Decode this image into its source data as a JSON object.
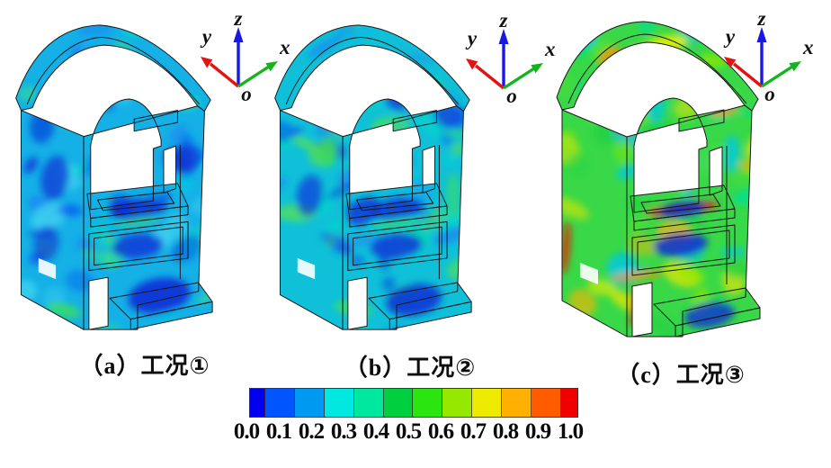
{
  "figure": {
    "background": "#ffffff",
    "subfigures": [
      {
        "id": "a",
        "caption": "（a）工况①",
        "base_color": "#14b0e6",
        "palette": [
          "#0a46f0",
          "#0a2ad8",
          "#1e78f5",
          "#00c8e0",
          "#00e0c0",
          "#35e08c",
          "#10a0f0",
          "#45d8f0"
        ]
      },
      {
        "id": "b",
        "caption": "（b）工况②",
        "base_color": "#0fc0d8",
        "palette": [
          "#0a46f0",
          "#0a2ad8",
          "#1e82f5",
          "#00d8c8",
          "#00e0a0",
          "#30dc6a",
          "#55e055",
          "#10aaf0"
        ]
      },
      {
        "id": "c",
        "caption": "（c）工况③",
        "base_color": "#38d848",
        "palette": [
          "#00e090",
          "#20d040",
          "#8ce800",
          "#e8e600",
          "#ffb400",
          "#00c8e8",
          "#30b8f0",
          "#50e030"
        ]
      }
    ],
    "axis_triad": {
      "x_label": "x",
      "y_label": "y",
      "z_label": "z",
      "origin_label": "o",
      "x_color": "#14b41c",
      "y_color": "#e41212",
      "z_color": "#1818e0"
    },
    "colorbar": {
      "tick_labels": [
        "0.0",
        "0.1",
        "0.2",
        "0.3",
        "0.4",
        "0.5",
        "0.6",
        "0.7",
        "0.8",
        "0.9",
        "1.0"
      ],
      "segment_colors": [
        "#0000ee",
        "#0055ff",
        "#0099f2",
        "#00e8e0",
        "#00e89d",
        "#00cf3f",
        "#2ae510",
        "#96e800",
        "#eeea00",
        "#ffb000",
        "#ff5c00",
        "#f00000"
      ]
    }
  },
  "chart_data": {
    "type": "heatmap",
    "title": "",
    "subplots": [
      {
        "label": "（a）工况①",
        "field_range": [
          0.0,
          1.0
        ],
        "dominant_range": [
          0.1,
          0.4
        ],
        "description": "normalized contour field, mostly blue–cyan (low values)"
      },
      {
        "label": "（b）工况②",
        "field_range": [
          0.0,
          1.0
        ],
        "dominant_range": [
          0.1,
          0.45
        ],
        "description": "normalized contour field, cyan with more green patches"
      },
      {
        "label": "（c）工况③",
        "field_range": [
          0.0,
          1.0
        ],
        "dominant_range": [
          0.3,
          0.7
        ],
        "description": "normalized contour field, green dominant with yellow/orange/red hotspots"
      }
    ],
    "colorbar": {
      "orientation": "horizontal",
      "range": [
        0.0,
        1.0
      ],
      "ticks": [
        0.0,
        0.1,
        0.2,
        0.3,
        0.4,
        0.5,
        0.6,
        0.7,
        0.8,
        0.9,
        1.0
      ],
      "segment_colors": [
        "#0000ee",
        "#0055ff",
        "#0099f2",
        "#00e8e0",
        "#00e89d",
        "#00cf3f",
        "#2ae510",
        "#96e800",
        "#eeea00",
        "#ffb000",
        "#ff5c00",
        "#f00000"
      ]
    },
    "axes": {
      "triad_labels": [
        "x",
        "y",
        "z"
      ],
      "origin_label": "o"
    }
  }
}
